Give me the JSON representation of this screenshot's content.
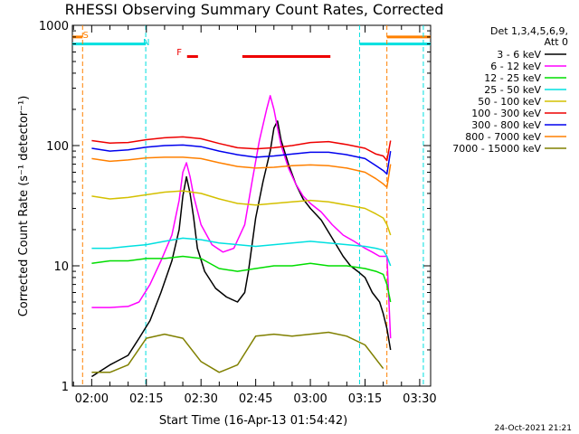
{
  "chart_data": {
    "type": "line",
    "title": "RHESSI Observing Summary Count Rates, Corrected",
    "xlabel": "Start Time (16-Apr-13 01:54:42)",
    "ylabel": "Corrected Count Rate (s⁻¹ detector⁻¹)",
    "footer": "24-Oct-2021 21:21",
    "y_scale": "log",
    "ylim": [
      1,
      1000
    ],
    "xlim": [
      "01:54:42",
      "03:33:00"
    ],
    "x_ticks": [
      "02:00",
      "02:15",
      "02:30",
      "02:45",
      "03:00",
      "03:15",
      "03:30"
    ],
    "y_ticks": [
      "1",
      "10",
      "100",
      "1000"
    ],
    "legend": {
      "placement": "right",
      "header": [
        "Det 1,3,4,5,6,9,",
        "Att 0"
      ],
      "entries": [
        {
          "label": "3 - 6 keV",
          "color": "#000000"
        },
        {
          "label": "6 - 12 keV",
          "color": "#ff00ff"
        },
        {
          "label": "12 - 25 keV",
          "color": "#00dd00"
        },
        {
          "label": "25 - 50 keV",
          "color": "#00e0e0"
        },
        {
          "label": "50 - 100 keV",
          "color": "#d4c000"
        },
        {
          "label": "100 - 300 keV",
          "color": "#ee0000"
        },
        {
          "label": "300 - 800 keV",
          "color": "#0000ee"
        },
        {
          "label": "800 - 7000 keV",
          "color": "#ff8000"
        },
        {
          "label": "7000 - 15000 keV",
          "color": "#808000"
        }
      ]
    },
    "annotations": [
      {
        "label": "S",
        "color": "#ff8000",
        "x": "01:58:20"
      },
      {
        "label": "N",
        "color": "#00dddd",
        "x": "02:15:00"
      },
      {
        "label": "F",
        "color": "#ee0000",
        "x": "02:26:30"
      }
    ],
    "flag_bars": [
      {
        "name": "SAA",
        "color": "#ff8000",
        "level": 800,
        "ranges": [
          [
            "01:54:42",
            "01:57:30"
          ],
          [
            "03:21:00",
            "03:33:00"
          ]
        ]
      },
      {
        "name": "Night",
        "color": "#00e0e0",
        "level": 700,
        "ranges": [
          [
            "01:54:42",
            "02:14:50"
          ],
          [
            "03:13:30",
            "03:33:00"
          ]
        ]
      },
      {
        "name": "Flare",
        "color": "#ee0000",
        "level": 550,
        "ranges": [
          [
            "02:26:10",
            "02:29:10"
          ],
          [
            "02:41:20",
            "03:05:30"
          ]
        ]
      }
    ],
    "series": [
      {
        "name": "3 - 6 keV",
        "color": "#000000",
        "x": [
          "02:00",
          "02:05",
          "02:10",
          "02:13",
          "02:16",
          "02:19",
          "02:22",
          "02:24",
          "02:25",
          "02:26",
          "02:27",
          "02:28",
          "02:29",
          "02:31",
          "02:34",
          "02:37",
          "02:40",
          "02:42",
          "02:43",
          "02:45",
          "02:47",
          "02:49",
          "02:50",
          "02:51",
          "02:52",
          "02:54",
          "02:56",
          "02:58",
          "03:00",
          "03:03",
          "03:06",
          "03:09",
          "03:11",
          "03:13",
          "03:15",
          "03:17",
          "03:19",
          "03:20",
          "03:21",
          "03:22"
        ],
        "y": [
          1.2,
          1.5,
          1.8,
          2.5,
          3.5,
          6,
          11,
          20,
          38,
          55,
          40,
          25,
          14,
          9,
          6.5,
          5.5,
          5,
          6,
          9,
          25,
          50,
          90,
          140,
          160,
          110,
          70,
          48,
          36,
          30,
          24,
          17,
          12,
          10,
          9,
          8,
          6,
          5,
          4,
          3,
          2
        ]
      },
      {
        "name": "6 - 12 keV",
        "color": "#ff00ff",
        "x": [
          "02:00",
          "02:05",
          "02:10",
          "02:13",
          "02:16",
          "02:19",
          "02:22",
          "02:24",
          "02:25",
          "02:26",
          "02:27",
          "02:28",
          "02:30",
          "02:33",
          "02:36",
          "02:39",
          "02:42",
          "02:44",
          "02:46",
          "02:48",
          "02:49",
          "02:50",
          "02:51",
          "02:52",
          "02:54",
          "02:56",
          "02:58",
          "03:00",
          "03:03",
          "03:06",
          "03:09",
          "03:12",
          "03:15",
          "03:17",
          "03:19",
          "03:20",
          "03:21",
          "03:22"
        ],
        "y": [
          4.5,
          4.5,
          4.6,
          5,
          7,
          11,
          18,
          35,
          60,
          72,
          55,
          38,
          22,
          15,
          13,
          14,
          22,
          50,
          110,
          200,
          260,
          200,
          140,
          100,
          65,
          48,
          38,
          33,
          28,
          22,
          18,
          16,
          14,
          13,
          12,
          12,
          12,
          2.5
        ]
      },
      {
        "name": "12 - 25 keV",
        "color": "#00dd00",
        "x": [
          "02:00",
          "02:05",
          "02:10",
          "02:15",
          "02:20",
          "02:25",
          "02:30",
          "02:35",
          "02:40",
          "02:45",
          "02:50",
          "02:55",
          "03:00",
          "03:05",
          "03:10",
          "03:15",
          "03:18",
          "03:20",
          "03:21",
          "03:22"
        ],
        "y": [
          10.5,
          11,
          11,
          11.5,
          11.5,
          12,
          11.5,
          9.5,
          9,
          9.5,
          10,
          10,
          10.5,
          10,
          10,
          9.5,
          9,
          8.5,
          7,
          5
        ]
      },
      {
        "name": "25 - 50 keV",
        "color": "#00e0e0",
        "x": [
          "02:00",
          "02:05",
          "02:10",
          "02:15",
          "02:20",
          "02:25",
          "02:30",
          "02:35",
          "02:40",
          "02:45",
          "02:50",
          "02:55",
          "03:00",
          "03:05",
          "03:10",
          "03:15",
          "03:18",
          "03:20",
          "03:21",
          "03:22"
        ],
        "y": [
          14,
          14,
          14.5,
          15,
          16,
          17,
          16.5,
          15.5,
          15,
          14.5,
          15,
          15.5,
          16,
          15.5,
          15,
          14.5,
          14,
          13.5,
          12,
          10
        ]
      },
      {
        "name": "50 - 100 keV",
        "color": "#d4c000",
        "x": [
          "02:00",
          "02:05",
          "02:10",
          "02:15",
          "02:20",
          "02:25",
          "02:30",
          "02:35",
          "02:40",
          "02:45",
          "02:50",
          "02:55",
          "03:00",
          "03:05",
          "03:10",
          "03:15",
          "03:18",
          "03:20",
          "03:21",
          "03:22"
        ],
        "y": [
          38,
          36,
          37,
          39,
          41,
          42,
          40,
          36,
          33,
          32,
          33,
          34,
          35,
          34,
          32,
          30,
          27,
          25,
          22,
          18
        ]
      },
      {
        "name": "100 - 300 keV",
        "color": "#ee0000",
        "x": [
          "02:00",
          "02:05",
          "02:10",
          "02:15",
          "02:20",
          "02:25",
          "02:30",
          "02:35",
          "02:40",
          "02:45",
          "02:50",
          "02:55",
          "03:00",
          "03:05",
          "03:10",
          "03:15",
          "03:18",
          "03:20",
          "03:21",
          "03:22"
        ],
        "y": [
          110,
          105,
          106,
          112,
          116,
          118,
          114,
          104,
          96,
          94,
          96,
          100,
          106,
          108,
          102,
          95,
          85,
          82,
          75,
          110
        ]
      },
      {
        "name": "300 - 800 keV",
        "color": "#0000ee",
        "x": [
          "02:00",
          "02:05",
          "02:10",
          "02:15",
          "02:20",
          "02:25",
          "02:30",
          "02:35",
          "02:40",
          "02:45",
          "02:50",
          "02:55",
          "03:00",
          "03:05",
          "03:10",
          "03:15",
          "03:18",
          "03:20",
          "03:21",
          "03:22"
        ],
        "y": [
          95,
          90,
          92,
          97,
          100,
          101,
          98,
          90,
          84,
          80,
          82,
          85,
          88,
          88,
          84,
          78,
          68,
          62,
          58,
          90
        ]
      },
      {
        "name": "800 - 7000 keV",
        "color": "#ff8000",
        "x": [
          "02:00",
          "02:05",
          "02:10",
          "02:15",
          "02:20",
          "02:25",
          "02:30",
          "02:35",
          "02:40",
          "02:45",
          "02:50",
          "02:55",
          "03:00",
          "03:05",
          "03:10",
          "03:15",
          "03:18",
          "03:20",
          "03:21",
          "03:22"
        ],
        "y": [
          78,
          74,
          76,
          79,
          80,
          80,
          78,
          72,
          67,
          65,
          66,
          68,
          69,
          68,
          65,
          60,
          53,
          48,
          45,
          70
        ]
      },
      {
        "name": "7000 - 15000 keV",
        "color": "#808000",
        "x": [
          "02:00",
          "02:05",
          "02:10",
          "02:15",
          "02:20",
          "02:25",
          "02:30",
          "02:35",
          "02:40",
          "02:45",
          "02:50",
          "02:55",
          "03:00",
          "03:05",
          "03:10",
          "03:15",
          "03:20"
        ],
        "y": [
          1.3,
          1.3,
          1.5,
          2.5,
          2.7,
          2.5,
          1.6,
          1.3,
          1.5,
          2.6,
          2.7,
          2.6,
          2.7,
          2.8,
          2.6,
          2.2,
          1.4
        ]
      }
    ]
  }
}
